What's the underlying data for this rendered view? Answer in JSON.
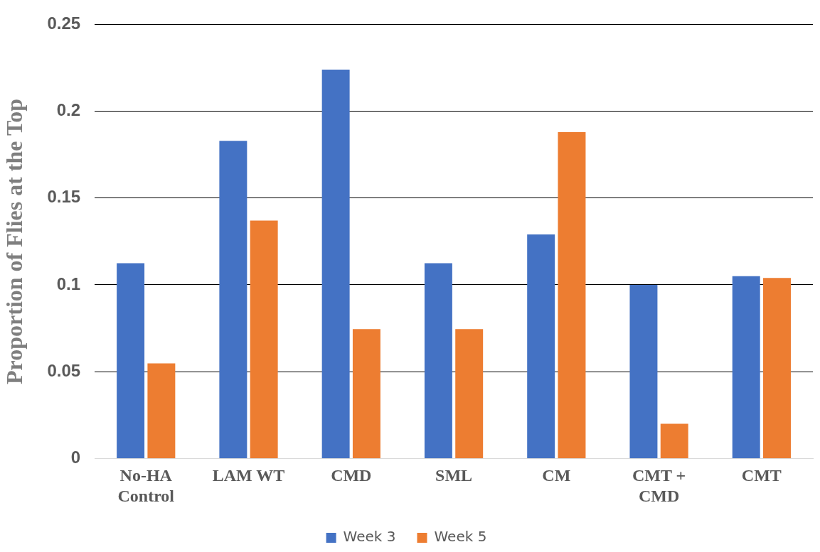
{
  "chart_data": {
    "type": "bar",
    "ylabel": "Proportion of Flies at the Top",
    "categories": [
      "No-HA Control",
      "LAM WT",
      "CMD",
      "SML",
      "CM",
      "CMT + CMD",
      "CMT"
    ],
    "series": [
      {
        "name": "Week 3",
        "color": "#4472c4",
        "values": [
          0.1125,
          0.183,
          0.224,
          0.1125,
          0.129,
          0.1,
          0.105
        ]
      },
      {
        "name": "Week 5",
        "color": "#ed7d31",
        "values": [
          0.0548,
          0.137,
          0.0745,
          0.0745,
          0.188,
          0.02,
          0.104
        ]
      }
    ],
    "ylim": [
      0,
      0.25
    ],
    "yticks": [
      0,
      0.05,
      0.1,
      0.15,
      0.2,
      0.25
    ],
    "grid": "y",
    "legend": "bottom"
  }
}
